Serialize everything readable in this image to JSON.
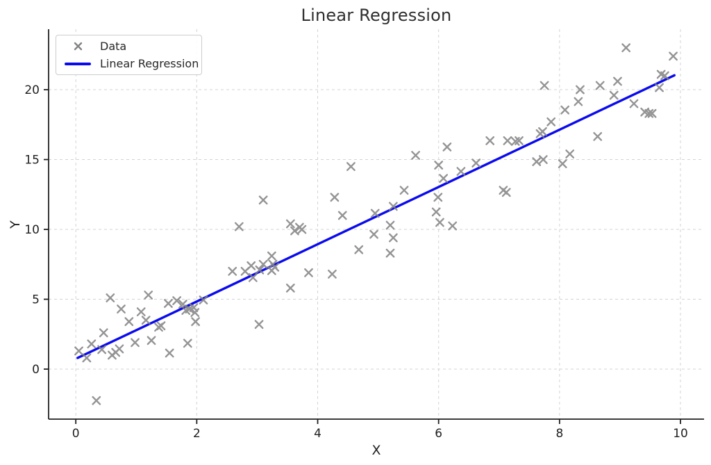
{
  "chart_data": {
    "type": "scatter",
    "title": "Linear Regression",
    "xlabel": "X",
    "ylabel": "Y",
    "xlim": [
      -0.45,
      10.39
    ],
    "ylim": [
      -3.58,
      24.33
    ],
    "xticks": [
      0,
      2,
      4,
      6,
      8,
      10
    ],
    "yticks": [
      0,
      5,
      10,
      15,
      20
    ],
    "grid": "dashed-both",
    "legend_position": "upper-left",
    "colors": {
      "scatter": "#828282",
      "line": "#0a0aee",
      "grid": "#cccccc",
      "spine": "#1f1f1f",
      "text": "#1f1f1f"
    },
    "legend": [
      {
        "label": "Data",
        "type": "marker-x"
      },
      {
        "label": "Linear Regression",
        "type": "line"
      }
    ],
    "series": [
      {
        "name": "Data",
        "type": "scatter",
        "marker": "x",
        "points": [
          [
            0.05,
            1.3
          ],
          [
            0.18,
            0.8
          ],
          [
            0.26,
            1.8
          ],
          [
            0.34,
            -2.25
          ],
          [
            0.43,
            1.4
          ],
          [
            0.46,
            2.6
          ],
          [
            0.57,
            5.1
          ],
          [
            0.6,
            1.0
          ],
          [
            0.66,
            1.2
          ],
          [
            0.72,
            1.45
          ],
          [
            0.75,
            4.3
          ],
          [
            0.88,
            3.4
          ],
          [
            0.98,
            1.9
          ],
          [
            1.08,
            4.1
          ],
          [
            1.16,
            3.5
          ],
          [
            1.2,
            5.3
          ],
          [
            1.25,
            2.05
          ],
          [
            1.37,
            3.0
          ],
          [
            1.41,
            3.1
          ],
          [
            1.53,
            4.7
          ],
          [
            1.55,
            1.15
          ],
          [
            1.67,
            4.9
          ],
          [
            1.77,
            4.65
          ],
          [
            1.82,
            4.2
          ],
          [
            1.85,
            1.85
          ],
          [
            1.88,
            4.3
          ],
          [
            1.95,
            4.4
          ],
          [
            1.97,
            4.05
          ],
          [
            1.98,
            3.4
          ],
          [
            2.11,
            4.95
          ],
          [
            2.59,
            7.0
          ],
          [
            2.7,
            10.2
          ],
          [
            2.8,
            7.0
          ],
          [
            2.9,
            7.4
          ],
          [
            2.93,
            6.55
          ],
          [
            3.03,
            3.2
          ],
          [
            3.04,
            7.1
          ],
          [
            3.1,
            7.5
          ],
          [
            3.1,
            12.1
          ],
          [
            3.24,
            8.1
          ],
          [
            3.24,
            7.05
          ],
          [
            3.26,
            7.5
          ],
          [
            3.29,
            7.3
          ],
          [
            3.55,
            5.8
          ],
          [
            3.55,
            10.4
          ],
          [
            3.62,
            9.9
          ],
          [
            3.7,
            10.15
          ],
          [
            3.74,
            10.0
          ],
          [
            3.85,
            6.9
          ],
          [
            4.24,
            6.8
          ],
          [
            4.28,
            12.3
          ],
          [
            4.41,
            11.0
          ],
          [
            4.55,
            14.5
          ],
          [
            4.68,
            8.55
          ],
          [
            4.93,
            9.65
          ],
          [
            4.95,
            11.15
          ],
          [
            5.2,
            8.3
          ],
          [
            5.2,
            10.3
          ],
          [
            5.25,
            9.4
          ],
          [
            5.25,
            11.65
          ],
          [
            5.43,
            12.8
          ],
          [
            5.62,
            15.3
          ],
          [
            5.96,
            11.25
          ],
          [
            5.99,
            12.3
          ],
          [
            6.0,
            14.6
          ],
          [
            6.02,
            10.5
          ],
          [
            6.08,
            13.65
          ],
          [
            6.14,
            15.9
          ],
          [
            6.23,
            10.25
          ],
          [
            6.37,
            14.15
          ],
          [
            6.62,
            14.75
          ],
          [
            6.85,
            16.35
          ],
          [
            7.07,
            12.8
          ],
          [
            7.12,
            12.65
          ],
          [
            7.14,
            16.35
          ],
          [
            7.27,
            16.3
          ],
          [
            7.33,
            16.35
          ],
          [
            7.62,
            14.85
          ],
          [
            7.68,
            16.85
          ],
          [
            7.72,
            17.0
          ],
          [
            7.73,
            15.0
          ],
          [
            7.75,
            20.3
          ],
          [
            7.86,
            17.7
          ],
          [
            8.05,
            14.7
          ],
          [
            8.09,
            18.55
          ],
          [
            8.17,
            15.4
          ],
          [
            8.31,
            19.15
          ],
          [
            8.34,
            20.0
          ],
          [
            8.63,
            16.65
          ],
          [
            8.67,
            20.3
          ],
          [
            8.9,
            19.6
          ],
          [
            8.96,
            20.6
          ],
          [
            9.1,
            23.0
          ],
          [
            9.23,
            19.0
          ],
          [
            9.41,
            18.4
          ],
          [
            9.48,
            18.3
          ],
          [
            9.53,
            18.3
          ],
          [
            9.65,
            20.15
          ],
          [
            9.68,
            21.1
          ],
          [
            9.74,
            21.0
          ],
          [
            9.88,
            22.4
          ]
        ]
      },
      {
        "name": "Linear Regression",
        "type": "line",
        "x": [
          0.03,
          9.9
        ],
        "y": [
          0.8,
          21.03
        ]
      }
    ]
  }
}
